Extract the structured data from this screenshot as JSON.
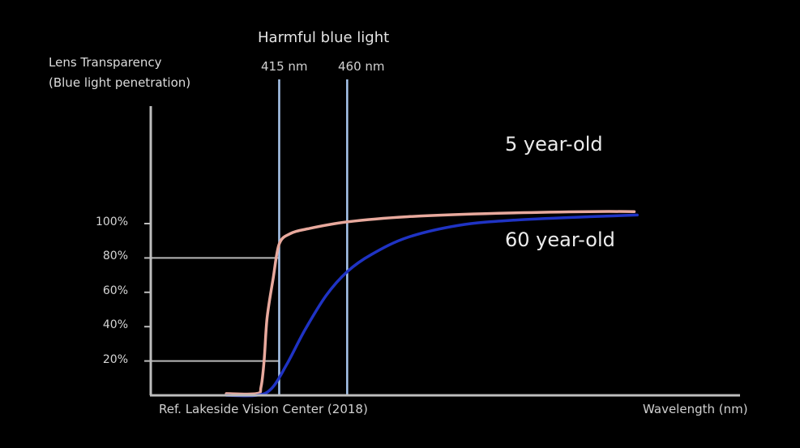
{
  "chart_data": {
    "type": "line",
    "title": "",
    "ylabel_lines": [
      "Lens Transparency",
      "(Blue light penetration)"
    ],
    "xlabel": "Wavelength (nm)",
    "source_note": "Ref. Lakeside Vision Center (2018)",
    "ylim": [
      0,
      100
    ],
    "xlim": [
      330,
      720
    ],
    "yticks": [
      {
        "value": 20,
        "label": "20%"
      },
      {
        "value": 40,
        "label": "40%"
      },
      {
        "value": 60,
        "label": "60%"
      },
      {
        "value": 80,
        "label": "80%"
      },
      {
        "value": 100,
        "label": "100%"
      }
    ],
    "reference_hlines": [
      20,
      80
    ],
    "band": {
      "title": "Harmful blue light",
      "left": {
        "value": 415,
        "label": "415 nm"
      },
      "right": {
        "value": 460,
        "label": "460 nm"
      }
    },
    "series": [
      {
        "name": "5 year-old",
        "color": "#e8a99d",
        "points": [
          [
            380,
            1
          ],
          [
            400,
            1
          ],
          [
            403,
            5
          ],
          [
            405,
            20
          ],
          [
            407,
            45
          ],
          [
            411,
            68
          ],
          [
            415,
            88
          ],
          [
            422,
            94
          ],
          [
            434,
            97
          ],
          [
            460,
            101
          ],
          [
            500,
            104
          ],
          [
            560,
            106
          ],
          [
            620,
            107
          ],
          [
            650,
            107
          ]
        ]
      },
      {
        "name": "60 year-old",
        "color": "#1f33c4",
        "points": [
          [
            380,
            0
          ],
          [
            400,
            0
          ],
          [
            410,
            4
          ],
          [
            420,
            18
          ],
          [
            432,
            38
          ],
          [
            446,
            58
          ],
          [
            460,
            72
          ],
          [
            476,
            82
          ],
          [
            500,
            92
          ],
          [
            534,
            99
          ],
          [
            570,
            102
          ],
          [
            620,
            104
          ],
          [
            652,
            105
          ]
        ]
      }
    ],
    "grid": false,
    "legend": "inline labels"
  }
}
